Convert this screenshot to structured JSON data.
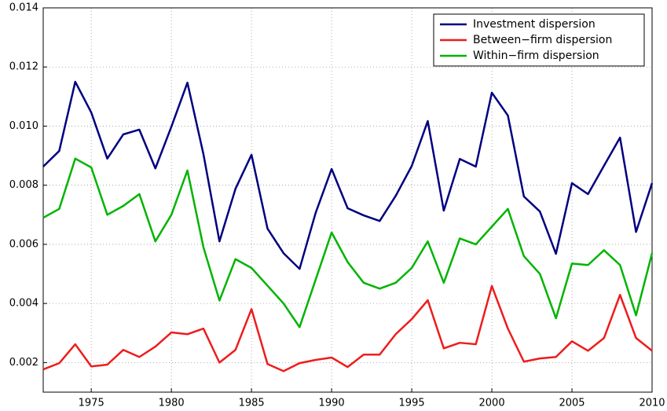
{
  "chart_data": {
    "type": "line",
    "x": [
      1972,
      1973,
      1974,
      1975,
      1976,
      1977,
      1978,
      1979,
      1980,
      1981,
      1982,
      1983,
      1984,
      1985,
      1986,
      1987,
      1988,
      1989,
      1990,
      1991,
      1992,
      1993,
      1994,
      1995,
      1996,
      1997,
      1998,
      1999,
      2000,
      2001,
      2002,
      2003,
      2004,
      2005,
      2006,
      2007,
      2008,
      2009,
      2010
    ],
    "series": [
      {
        "name": "Investment dispersion",
        "color": "#000080",
        "values": [
          0.00863,
          0.00916,
          0.0115,
          0.01046,
          0.0089,
          0.00972,
          0.00988,
          0.00857,
          0.00998,
          0.01147,
          0.00905,
          0.0061,
          0.00788,
          0.00903,
          0.00653,
          0.0057,
          0.00517,
          0.00706,
          0.00855,
          0.00722,
          0.00698,
          0.00679,
          0.00764,
          0.00865,
          0.01017,
          0.00714,
          0.00889,
          0.00863,
          0.01113,
          0.01036,
          0.00762,
          0.00711,
          0.00568,
          0.00807,
          0.0077,
          0.00866,
          0.00961,
          0.00642,
          0.00807
        ]
      },
      {
        "name": "Between−firm dispersion",
        "color": "#ee1c1c",
        "values": [
          0.00177,
          0.00198,
          0.00262,
          0.00187,
          0.00193,
          0.00243,
          0.00219,
          0.00254,
          0.00302,
          0.00296,
          0.00315,
          0.002,
          0.00243,
          0.00381,
          0.00195,
          0.00171,
          0.00198,
          0.00209,
          0.00217,
          0.00185,
          0.00227,
          0.00227,
          0.00296,
          0.00347,
          0.00411,
          0.00248,
          0.00267,
          0.00262,
          0.00459,
          0.00315,
          0.00203,
          0.00214,
          0.00219,
          0.00272,
          0.0024,
          0.00283,
          0.00429,
          0.00283,
          0.0024
        ]
      },
      {
        "name": "Within−firm dispersion",
        "color": "#00b400",
        "values": [
          0.0069,
          0.0072,
          0.0089,
          0.0086,
          0.007,
          0.0073,
          0.0077,
          0.0061,
          0.007,
          0.0085,
          0.0059,
          0.0041,
          0.0055,
          0.0052,
          0.0046,
          0.004,
          0.0032,
          0.0048,
          0.0064,
          0.0054,
          0.0047,
          0.0045,
          0.0047,
          0.0052,
          0.0061,
          0.0047,
          0.0062,
          0.006,
          0.0066,
          0.0072,
          0.0056,
          0.005,
          0.0035,
          0.00535,
          0.0053,
          0.0058,
          0.0053,
          0.0036,
          0.0057
        ]
      }
    ],
    "xlim": [
      1972,
      2010
    ],
    "xticks": [
      1975,
      1980,
      1985,
      1990,
      1995,
      2000,
      2005,
      2010
    ],
    "ylim": [
      0.001,
      0.014
    ],
    "yticks": [
      0.002,
      0.004,
      0.006,
      0.008,
      {
        "value": 0.01,
        "label": "0.010"
      },
      0.012,
      0.014
    ],
    "grid": true,
    "legend": "upper right"
  }
}
